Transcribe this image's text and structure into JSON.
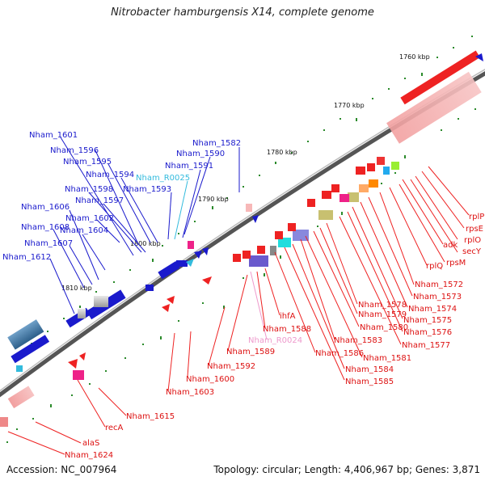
{
  "title": "Nitrobacter hamburgensis X14, complete genome",
  "accession": "Accession: NC_007964",
  "summary": "Topology: circular; Length: 4,406,967 bp; Genes: 3,871",
  "colors": {
    "forward": "#ee1111",
    "reverse": "#1111cc",
    "rna_light": "#33bbdd",
    "rna_pink": "#ee99cc",
    "backbone": "#777777"
  },
  "scale": [
    "1760 kbp",
    "1770 kbp",
    "1780 kbp",
    "1790 kbp",
    "1800 kbp",
    "1810 kbp"
  ],
  "labels_blue": [
    "Nham_1601",
    "Nham_1596",
    "Nham_1595",
    "Nham_1594",
    "Nham_1598",
    "Nham_1597",
    "Nham_1606",
    "Nham_1602",
    "Nham_1608",
    "Nham_1604",
    "Nham_1607",
    "Nham_1612",
    "Nham_1582",
    "Nham_1590",
    "Nham_1591",
    "Nham_1593"
  ],
  "label_rna_blue": "Nham_R0025",
  "labels_red_right": [
    "rplP",
    "rpsE",
    "rplO",
    "adk",
    "secY",
    "rplQ",
    "rpsM",
    "Nham_1572",
    "Nham_1573",
    "Nham_1574",
    "Nham_1575",
    "Nham_1576",
    "Nham_1577",
    "Nham_1578",
    "Nham_1579",
    "Nham_1580",
    "Nham_1581",
    "Nham_1583",
    "Nham_1584",
    "Nham_1585",
    "Nham_1586",
    "ihfA",
    "Nham_1588"
  ],
  "label_rna_pink": "Nham_R0024",
  "labels_red_left": [
    "Nham_1589",
    "Nham_1592",
    "Nham_1600",
    "Nham_1603",
    "Nham_1615",
    "recA",
    "alaS",
    "Nham_1624"
  ]
}
